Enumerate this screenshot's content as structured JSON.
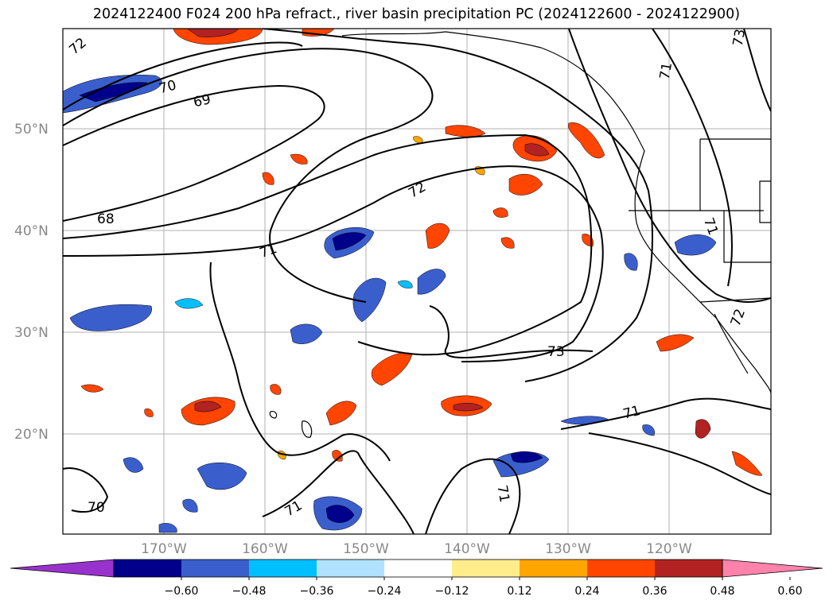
{
  "title": "2024122400 F024 200 hPa refract., river basin precipitation PC (2024122600 - 2024122900)",
  "map": {
    "lat_labels": [
      "50°N",
      "40°N",
      "30°N",
      "20°N"
    ],
    "lon_labels": [
      "170°W",
      "160°W",
      "150°W",
      "140°W",
      "130°W",
      "120°W"
    ],
    "contour_labels": [
      "72",
      "70",
      "69",
      "68",
      "71",
      "72",
      "73",
      "71",
      "71",
      "70",
      "71",
      "71",
      "72",
      "71",
      "73"
    ]
  },
  "colorbar": {
    "colors": [
      "#9932cc",
      "#00008b",
      "#3a5fcd",
      "#00bfff",
      "#b0e2ff",
      "#ffffff",
      "#ffec8b",
      "#ffa500",
      "#ff4500",
      "#b22222",
      "#ff82ab"
    ],
    "tick_labels": [
      "−0.60",
      "−0.48",
      "−0.36",
      "−0.24",
      "−0.12",
      "0.12",
      "0.24",
      "0.36",
      "0.48",
      "0.60"
    ]
  }
}
